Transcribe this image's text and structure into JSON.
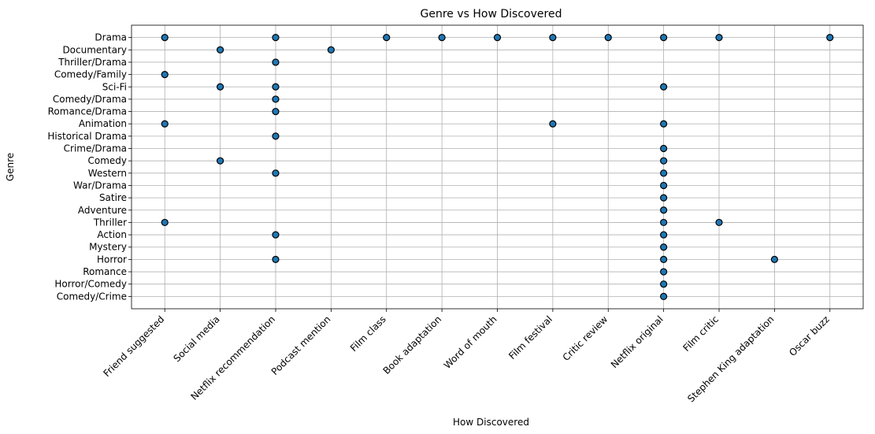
{
  "chart_data": {
    "type": "scatter",
    "title": "Genre vs How Discovered",
    "xlabel": "How Discovered",
    "ylabel": "Genre",
    "grid": true,
    "point_color": "#1f77b4",
    "edge_color": "#000000",
    "x_categories": [
      "Friend suggested",
      "Social media",
      "Netflix recommendation",
      "Podcast mention",
      "Film class",
      "Book adaptation",
      "Word of mouth",
      "Film festival",
      "Critic review",
      "Netflix original",
      "Film critic",
      "Stephen King adaptation",
      "Oscar buzz"
    ],
    "y_categories": [
      "Drama",
      "Documentary",
      "Thriller/Drama",
      "Comedy/Family",
      "Sci-Fi",
      "Comedy/Drama",
      "Romance/Drama",
      "Animation",
      "Historical Drama",
      "Crime/Drama",
      "Comedy",
      "Western",
      "War/Drama",
      "Satire",
      "Adventure",
      "Thriller",
      "Action",
      "Mystery",
      "Horror",
      "Romance",
      "Horror/Comedy",
      "Comedy/Crime"
    ],
    "points": [
      {
        "x": "Friend suggested",
        "y": "Drama"
      },
      {
        "x": "Netflix recommendation",
        "y": "Drama"
      },
      {
        "x": "Film class",
        "y": "Drama"
      },
      {
        "x": "Book adaptation",
        "y": "Drama"
      },
      {
        "x": "Word of mouth",
        "y": "Drama"
      },
      {
        "x": "Film festival",
        "y": "Drama"
      },
      {
        "x": "Critic review",
        "y": "Drama"
      },
      {
        "x": "Netflix original",
        "y": "Drama"
      },
      {
        "x": "Film critic",
        "y": "Drama"
      },
      {
        "x": "Oscar buzz",
        "y": "Drama"
      },
      {
        "x": "Social media",
        "y": "Documentary"
      },
      {
        "x": "Podcast mention",
        "y": "Documentary"
      },
      {
        "x": "Netflix recommendation",
        "y": "Thriller/Drama"
      },
      {
        "x": "Friend suggested",
        "y": "Comedy/Family"
      },
      {
        "x": "Social media",
        "y": "Sci-Fi"
      },
      {
        "x": "Netflix recommendation",
        "y": "Sci-Fi"
      },
      {
        "x": "Netflix original",
        "y": "Sci-Fi"
      },
      {
        "x": "Netflix recommendation",
        "y": "Comedy/Drama"
      },
      {
        "x": "Netflix recommendation",
        "y": "Romance/Drama"
      },
      {
        "x": "Friend suggested",
        "y": "Animation"
      },
      {
        "x": "Film festival",
        "y": "Animation"
      },
      {
        "x": "Netflix original",
        "y": "Animation"
      },
      {
        "x": "Netflix recommendation",
        "y": "Historical Drama"
      },
      {
        "x": "Netflix original",
        "y": "Crime/Drama"
      },
      {
        "x": "Social media",
        "y": "Comedy"
      },
      {
        "x": "Netflix original",
        "y": "Comedy"
      },
      {
        "x": "Netflix recommendation",
        "y": "Western"
      },
      {
        "x": "Netflix original",
        "y": "Western"
      },
      {
        "x": "Netflix original",
        "y": "War/Drama"
      },
      {
        "x": "Netflix original",
        "y": "Satire"
      },
      {
        "x": "Netflix original",
        "y": "Adventure"
      },
      {
        "x": "Friend suggested",
        "y": "Thriller"
      },
      {
        "x": "Netflix original",
        "y": "Thriller"
      },
      {
        "x": "Film critic",
        "y": "Thriller"
      },
      {
        "x": "Netflix recommendation",
        "y": "Action"
      },
      {
        "x": "Netflix original",
        "y": "Action"
      },
      {
        "x": "Netflix original",
        "y": "Mystery"
      },
      {
        "x": "Netflix recommendation",
        "y": "Horror"
      },
      {
        "x": "Netflix original",
        "y": "Horror"
      },
      {
        "x": "Stephen King adaptation",
        "y": "Horror"
      },
      {
        "x": "Netflix original",
        "y": "Romance"
      },
      {
        "x": "Netflix original",
        "y": "Horror/Comedy"
      },
      {
        "x": "Netflix original",
        "y": "Comedy/Crime"
      }
    ]
  }
}
